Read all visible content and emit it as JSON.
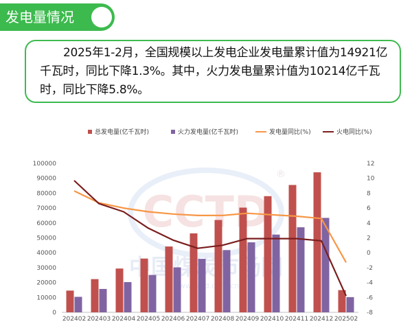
{
  "header": {
    "title": "发电量情况"
  },
  "summary": {
    "text": "2025年1-2月，全国规模以上发电企业发电量累计值为14921亿千瓦时，同比下降1.3%。其中，火力发电量累计值为10214亿千瓦时，同比下降5.8%。"
  },
  "watermark": {
    "logo": "CCTD",
    "name": "中国煤炭市场网",
    "url": "www.cctd.com.cn",
    "mark": "®"
  },
  "colors": {
    "total_bar": "#c0504d",
    "thermal_bar": "#8064a2",
    "total_yoy_line": "#f79646",
    "thermal_yoy_line": "#7b1e1e"
  },
  "chart_data": {
    "type": "bar",
    "categories": [
      "202402",
      "202403",
      "202404",
      "202405",
      "202406",
      "202407",
      "202408",
      "202409",
      "202410",
      "202411",
      "202412",
      "202502"
    ],
    "series": [
      {
        "name": "总发电量(亿千瓦时)",
        "kind": "bar",
        "axis": "left",
        "values": [
          14600,
          22300,
          29400,
          36100,
          44200,
          53000,
          62000,
          70300,
          78000,
          85500,
          94000,
          14921
        ]
      },
      {
        "name": "火力发电量(亿千瓦时)",
        "kind": "bar",
        "axis": "left",
        "values": [
          10400,
          15700,
          20300,
          25100,
          30200,
          35900,
          41800,
          47000,
          52200,
          57100,
          63400,
          10214
        ]
      },
      {
        "name": "发电量同比(%)",
        "kind": "line",
        "axis": "right",
        "values": [
          8.3,
          6.7,
          6.0,
          5.5,
          5.2,
          5.0,
          5.0,
          5.3,
          5.1,
          4.9,
          4.6,
          -1.3
        ]
      },
      {
        "name": "火电同比(%)",
        "kind": "line",
        "axis": "right",
        "values": [
          9.7,
          6.6,
          5.5,
          3.3,
          1.7,
          0.6,
          1.0,
          1.9,
          1.9,
          1.9,
          1.6,
          -5.8
        ]
      }
    ],
    "y_left": {
      "min": 0,
      "max": 100000,
      "step": 10000
    },
    "y_right": {
      "min": -8,
      "max": 12,
      "step": 2
    },
    "grid": false,
    "legend_position": "top"
  }
}
